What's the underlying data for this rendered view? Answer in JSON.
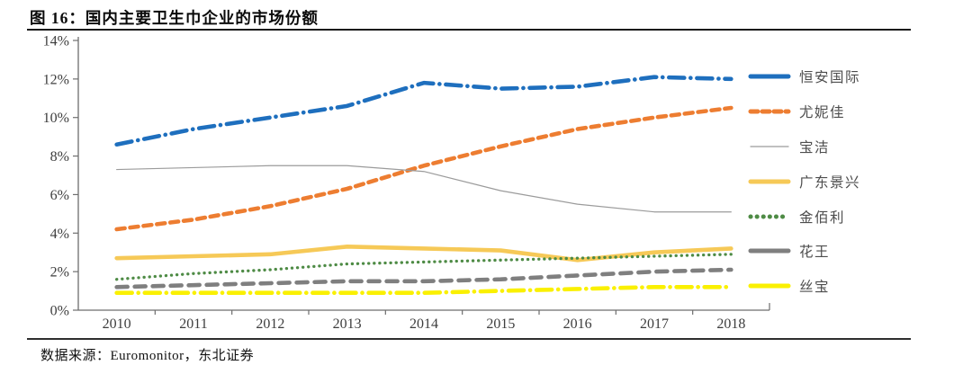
{
  "figure": {
    "title": "图 16：国内主要卫生巾企业的市场份额",
    "source_label": "数据来源：Euromonitor，东北证券"
  },
  "chart_data": {
    "type": "line",
    "title": "国内主要卫生巾企业的市场份额",
    "categories": [
      "2010",
      "2011",
      "2012",
      "2013",
      "2014",
      "2015",
      "2016",
      "2017",
      "2018"
    ],
    "series": [
      {
        "name": "恒安国际",
        "color": "#1E6FBE",
        "style": "dashdot",
        "values": [
          8.6,
          9.4,
          10.0,
          10.6,
          11.8,
          11.5,
          11.6,
          12.1,
          12.0
        ]
      },
      {
        "name": "尤妮佳",
        "color": "#ED7D31",
        "style": "dashed",
        "values": [
          4.2,
          4.7,
          5.4,
          6.3,
          7.5,
          8.5,
          9.4,
          10.0,
          10.5
        ]
      },
      {
        "name": "宝洁",
        "color": "#9B9B9B",
        "style": "thin",
        "values": [
          7.3,
          7.4,
          7.5,
          7.5,
          7.2,
          6.2,
          5.5,
          5.1,
          5.1
        ]
      },
      {
        "name": "广东景兴",
        "color": "#F6C957",
        "style": "solid",
        "values": [
          2.7,
          2.8,
          2.9,
          3.3,
          3.2,
          3.1,
          2.6,
          3.0,
          3.2
        ]
      },
      {
        "name": "金佰利",
        "color": "#4E8B45",
        "style": "dotted",
        "values": [
          1.6,
          1.9,
          2.1,
          2.4,
          2.5,
          2.6,
          2.7,
          2.8,
          2.9
        ]
      },
      {
        "name": "花王",
        "color": "#7F7F7F",
        "style": "dashed-wide",
        "values": [
          1.2,
          1.3,
          1.4,
          1.5,
          1.5,
          1.6,
          1.8,
          2.0,
          2.1
        ]
      },
      {
        "name": "丝宝",
        "color": "#FAF000",
        "style": "dashdot",
        "values": [
          0.9,
          0.9,
          0.9,
          0.9,
          0.9,
          1.0,
          1.1,
          1.2,
          1.2
        ]
      }
    ],
    "xlabel": "",
    "ylabel": "",
    "ylim": [
      0,
      14
    ],
    "ytick_step": 2,
    "ytick_format": "percent",
    "grid": false,
    "legend_position": "right",
    "axis_color": "#6e6e6e",
    "tick_label_color": "#3d3d3d"
  }
}
